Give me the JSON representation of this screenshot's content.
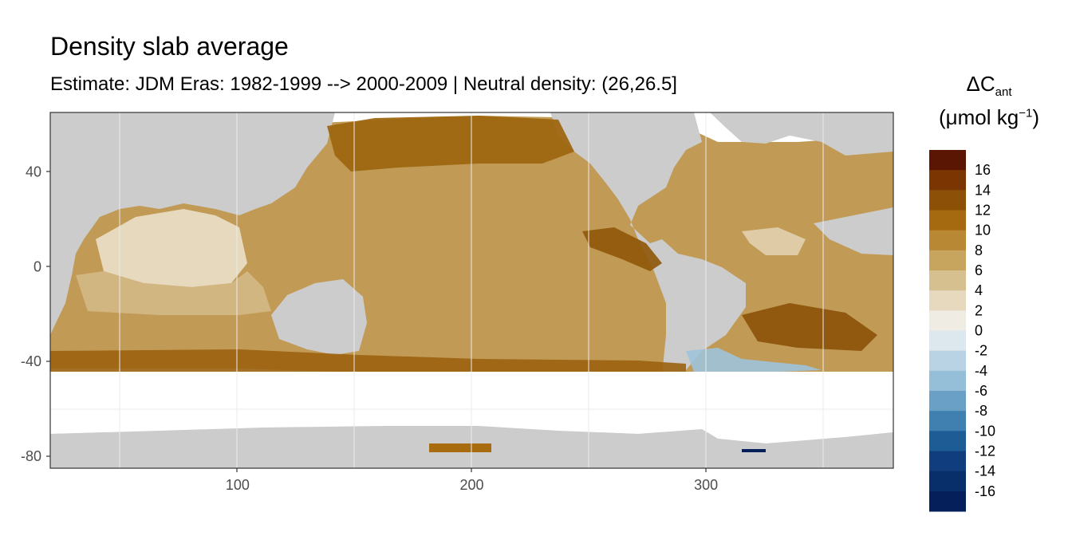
{
  "title": "Density slab average",
  "subtitle": "Estimate: JDM Eras: 1982-1999 --> 2000-2009 | Neutral density: (26,26.5]",
  "legend": {
    "title_main": "ΔC",
    "title_sub": "ant",
    "unit_main": "(μmol kg",
    "unit_sup": "−1",
    "unit_close": ")",
    "labels": [
      "16",
      "14",
      "12",
      "10",
      "8",
      "6",
      "4",
      "2",
      "0",
      "-2",
      "-4",
      "-6",
      "-8",
      "-10",
      "-12",
      "-14",
      "-16"
    ],
    "colors": [
      "#5a1603",
      "#7a3503",
      "#8c5106",
      "#a5690f",
      "#b98834",
      "#c7a55f",
      "#d7c08f",
      "#e7d9bd",
      "#efece3",
      "#dde8ee",
      "#b9d3e4",
      "#95bed8",
      "#6aa0c6",
      "#3f80b0",
      "#1e5c96",
      "#0f3d7e",
      "#082f6a",
      "#041f59"
    ]
  },
  "chart_data": {
    "type": "heatmap",
    "title": "Density slab average",
    "subtitle": "Estimate: JDM Eras: 1982-1999 --> 2000-2009 | Neutral density: (26,26.5]",
    "xlabel": "",
    "ylabel": "",
    "xlim": [
      20,
      380
    ],
    "ylim": [
      -85,
      65
    ],
    "x_ticks": [
      100,
      200,
      300
    ],
    "y_ticks": [
      40,
      0,
      -40,
      -80
    ],
    "legend_position": "right",
    "colorbar_range": [
      -18,
      18
    ],
    "colorbar_ticks": [
      16,
      14,
      12,
      10,
      8,
      6,
      4,
      2,
      0,
      -2,
      -4,
      -6,
      -8,
      -10,
      -12,
      -14,
      -16
    ],
    "background_land_color": "#cccccc",
    "no_data_color": "#ffffff"
  }
}
